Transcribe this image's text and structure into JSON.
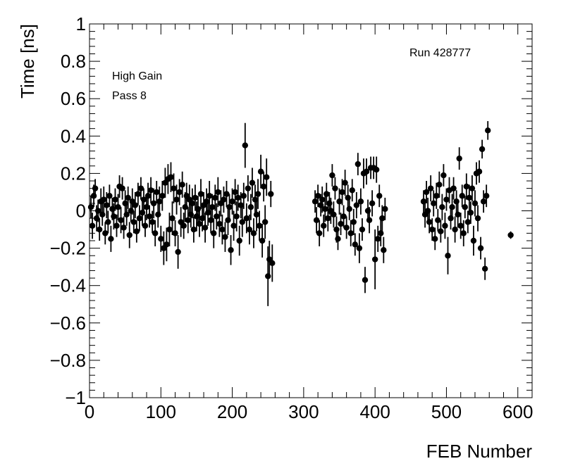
{
  "chart_data": {
    "type": "scatter",
    "xlabel": "FEB Number",
    "ylabel": "Time [ns]",
    "xlim": [
      0,
      620
    ],
    "ylim": [
      -1,
      1
    ],
    "x_ticks": [
      0,
      100,
      200,
      300,
      400,
      500,
      600
    ],
    "y_ticks": [
      -1,
      -0.8,
      -0.6,
      -0.4,
      -0.2,
      0,
      0.2,
      0.4,
      0.6,
      0.8,
      1
    ],
    "x_tick_labels": [
      "0",
      "100",
      "200",
      "300",
      "400",
      "500",
      "600"
    ],
    "y_tick_labels": [
      "−1",
      "−0.8",
      "−0.6",
      "−0.4",
      "−0.2",
      "0",
      "0.2",
      "0.4",
      "0.6",
      "0.8",
      "1"
    ],
    "grid": false,
    "annotations": {
      "gain": "High Gain",
      "pass": "Pass 8",
      "run": "Run 428777"
    },
    "points": [
      [
        2,
        0.02,
        0.06
      ],
      [
        4,
        -0.08,
        0.07
      ],
      [
        6,
        0.08,
        0.06
      ],
      [
        8,
        0.12,
        0.05
      ],
      [
        10,
        -0.04,
        0.07
      ],
      [
        12,
        0.0,
        0.06
      ],
      [
        14,
        -0.1,
        0.06
      ],
      [
        16,
        0.05,
        0.07
      ],
      [
        18,
        -0.02,
        0.06
      ],
      [
        20,
        0.06,
        0.07
      ],
      [
        22,
        -0.12,
        0.06
      ],
      [
        24,
        0.03,
        0.07
      ],
      [
        26,
        -0.06,
        0.06
      ],
      [
        28,
        0.08,
        0.06
      ],
      [
        30,
        -0.15,
        0.07
      ],
      [
        32,
        0.01,
        0.06
      ],
      [
        34,
        -0.03,
        0.07
      ],
      [
        36,
        0.06,
        0.06
      ],
      [
        38,
        -0.08,
        0.06
      ],
      [
        40,
        0.02,
        0.07
      ],
      [
        42,
        0.13,
        0.06
      ],
      [
        44,
        -0.05,
        0.07
      ],
      [
        46,
        0.12,
        0.06
      ],
      [
        48,
        -0.09,
        0.06
      ],
      [
        50,
        0.04,
        0.07
      ],
      [
        52,
        -0.02,
        0.06
      ],
      [
        54,
        0.07,
        0.06
      ],
      [
        56,
        -0.13,
        0.07
      ],
      [
        58,
        0.0,
        0.06
      ],
      [
        60,
        0.05,
        0.07
      ],
      [
        62,
        -0.06,
        0.06
      ],
      [
        64,
        0.03,
        0.07
      ],
      [
        66,
        -0.11,
        0.06
      ],
      [
        68,
        0.09,
        0.06
      ],
      [
        70,
        -0.04,
        0.07
      ],
      [
        72,
        0.12,
        0.06
      ],
      [
        74,
        -0.01,
        0.07
      ],
      [
        76,
        0.06,
        0.06
      ],
      [
        78,
        -0.08,
        0.06
      ],
      [
        80,
        0.02,
        0.07
      ],
      [
        82,
        0.08,
        0.07
      ],
      [
        84,
        -0.03,
        0.06
      ],
      [
        86,
        0.11,
        0.07
      ],
      [
        88,
        -0.06,
        0.06
      ],
      [
        90,
        0.04,
        0.08
      ],
      [
        92,
        -0.12,
        0.07
      ],
      [
        94,
        0.1,
        0.06
      ],
      [
        96,
        -0.02,
        0.07
      ],
      [
        98,
        0.05,
        0.08
      ],
      [
        100,
        -0.15,
        0.07
      ],
      [
        102,
        0.08,
        0.08
      ],
      [
        104,
        -0.2,
        0.09
      ],
      [
        106,
        0.15,
        0.08
      ],
      [
        108,
        -0.18,
        0.09
      ],
      [
        110,
        0.17,
        0.08
      ],
      [
        112,
        -0.1,
        0.09
      ],
      [
        114,
        0.18,
        0.08
      ],
      [
        116,
        -0.04,
        0.09
      ],
      [
        118,
        0.12,
        0.08
      ],
      [
        120,
        -0.12,
        0.07
      ],
      [
        122,
        0.06,
        0.08
      ],
      [
        124,
        -0.22,
        0.09
      ],
      [
        126,
        0.1,
        0.07
      ],
      [
        128,
        -0.06,
        0.08
      ],
      [
        130,
        0.14,
        0.07
      ],
      [
        132,
        -0.08,
        0.07
      ],
      [
        134,
        0.02,
        0.08
      ],
      [
        136,
        0.08,
        0.07
      ],
      [
        138,
        -0.05,
        0.07
      ],
      [
        140,
        0.06,
        0.08
      ],
      [
        142,
        -0.02,
        0.07
      ],
      [
        144,
        0.04,
        0.08
      ],
      [
        146,
        -0.1,
        0.07
      ],
      [
        148,
        0.07,
        0.07
      ],
      [
        150,
        -0.03,
        0.08
      ],
      [
        152,
        0.01,
        0.07
      ],
      [
        154,
        -0.07,
        0.07
      ],
      [
        156,
        0.09,
        0.08
      ],
      [
        158,
        -0.04,
        0.07
      ],
      [
        160,
        0.03,
        0.07
      ],
      [
        162,
        -0.09,
        0.08
      ],
      [
        164,
        0.05,
        0.07
      ],
      [
        166,
        -0.01,
        0.07
      ],
      [
        168,
        0.08,
        0.08
      ],
      [
        170,
        -0.05,
        0.07
      ],
      [
        172,
        0.02,
        0.07
      ],
      [
        174,
        -0.12,
        0.08
      ],
      [
        176,
        0.07,
        0.07
      ],
      [
        178,
        -0.03,
        0.07
      ],
      [
        180,
        0.1,
        0.08
      ],
      [
        182,
        -0.07,
        0.07
      ],
      [
        184,
        0.04,
        0.07
      ],
      [
        186,
        -0.1,
        0.08
      ],
      [
        188,
        0.06,
        0.07
      ],
      [
        190,
        -0.14,
        0.08
      ],
      [
        192,
        0.09,
        0.07
      ],
      [
        194,
        -0.05,
        0.08
      ],
      [
        196,
        0.02,
        0.07
      ],
      [
        198,
        -0.21,
        0.08
      ],
      [
        200,
        0.05,
        0.07
      ],
      [
        202,
        -0.08,
        0.08
      ],
      [
        204,
        0.1,
        0.07
      ],
      [
        206,
        -0.03,
        0.08
      ],
      [
        208,
        0.07,
        0.07
      ],
      [
        210,
        -0.16,
        0.08
      ],
      [
        212,
        0.03,
        0.07
      ],
      [
        214,
        -0.06,
        0.08
      ],
      [
        216,
        0.08,
        0.07
      ],
      [
        218,
        0.35,
        0.12
      ],
      [
        220,
        -0.04,
        0.08
      ],
      [
        222,
        0.12,
        0.07
      ],
      [
        224,
        -0.1,
        0.08
      ],
      [
        226,
        0.02,
        0.07
      ],
      [
        228,
        0.15,
        0.08
      ],
      [
        230,
        -0.12,
        0.08
      ],
      [
        232,
        0.06,
        0.08
      ],
      [
        234,
        -0.02,
        0.09
      ],
      [
        236,
        0.09,
        0.08
      ],
      [
        238,
        -0.08,
        0.08
      ],
      [
        240,
        0.21,
        0.09
      ],
      [
        242,
        -0.16,
        0.09
      ],
      [
        244,
        0.13,
        0.08
      ],
      [
        246,
        -0.06,
        0.09
      ],
      [
        248,
        0.18,
        0.1
      ],
      [
        250,
        -0.35,
        0.16
      ],
      [
        252,
        -0.26,
        0.1
      ],
      [
        254,
        0.09,
        0.07
      ],
      [
        256,
        -0.28,
        0.1
      ],
      [
        316,
        0.05,
        0.06
      ],
      [
        318,
        -0.05,
        0.07
      ],
      [
        320,
        0.08,
        0.06
      ],
      [
        322,
        -0.12,
        0.07
      ],
      [
        324,
        0.03,
        0.06
      ],
      [
        326,
        0.06,
        0.07
      ],
      [
        328,
        -0.08,
        0.06
      ],
      [
        330,
        0.01,
        0.07
      ],
      [
        332,
        0.09,
        0.06
      ],
      [
        334,
        -0.04,
        0.07
      ],
      [
        336,
        0.04,
        0.06
      ],
      [
        338,
        0.0,
        0.07
      ],
      [
        340,
        0.19,
        0.06
      ],
      [
        342,
        -0.02,
        0.07
      ],
      [
        344,
        0.12,
        0.06
      ],
      [
        346,
        -0.1,
        0.07
      ],
      [
        348,
        -0.15,
        0.06
      ],
      [
        350,
        0.05,
        0.07
      ],
      [
        352,
        -0.07,
        0.06
      ],
      [
        354,
        0.1,
        0.07
      ],
      [
        356,
        -0.03,
        0.06
      ],
      [
        358,
        0.15,
        0.07
      ],
      [
        360,
        -0.09,
        0.06
      ],
      [
        362,
        0.07,
        0.07
      ],
      [
        364,
        0.01,
        0.06
      ],
      [
        366,
        -0.12,
        0.07
      ],
      [
        368,
        0.11,
        0.06
      ],
      [
        370,
        -0.06,
        0.07
      ],
      [
        372,
        -0.18,
        0.06
      ],
      [
        374,
        0.03,
        0.07
      ],
      [
        376,
        0.25,
        0.06
      ],
      [
        378,
        -0.2,
        0.08
      ],
      [
        380,
        0.05,
        0.07
      ],
      [
        382,
        -0.1,
        0.06
      ],
      [
        384,
        0.2,
        0.08
      ],
      [
        386,
        -0.37,
        0.07
      ],
      [
        388,
        0.21,
        0.07
      ],
      [
        390,
        0.0,
        0.06
      ],
      [
        392,
        -0.05,
        0.07
      ],
      [
        394,
        0.23,
        0.06
      ],
      [
        396,
        0.04,
        0.07
      ],
      [
        398,
        0.23,
        0.06
      ],
      [
        400,
        -0.26,
        0.16
      ],
      [
        402,
        0.22,
        0.07
      ],
      [
        404,
        -0.15,
        0.07
      ],
      [
        406,
        0.08,
        0.06
      ],
      [
        408,
        -0.12,
        0.07
      ],
      [
        410,
        -0.04,
        0.07
      ],
      [
        412,
        -0.21,
        0.07
      ],
      [
        414,
        0.01,
        0.06
      ],
      [
        468,
        0.05,
        0.06
      ],
      [
        470,
        -0.02,
        0.07
      ],
      [
        472,
        0.1,
        0.06
      ],
      [
        474,
        0.0,
        0.07
      ],
      [
        476,
        -0.06,
        0.06
      ],
      [
        478,
        0.12,
        0.07
      ],
      [
        480,
        -0.1,
        0.06
      ],
      [
        482,
        0.04,
        0.07
      ],
      [
        484,
        -0.15,
        0.06
      ],
      [
        486,
        0.08,
        0.07
      ],
      [
        488,
        -0.05,
        0.06
      ],
      [
        490,
        0.14,
        0.07
      ],
      [
        492,
        -0.11,
        0.06
      ],
      [
        494,
        0.02,
        0.07
      ],
      [
        496,
        0.19,
        0.06
      ],
      [
        498,
        -0.08,
        0.07
      ],
      [
        500,
        0.06,
        0.06
      ],
      [
        502,
        -0.24,
        0.1
      ],
      [
        504,
        0.11,
        0.07
      ],
      [
        506,
        -0.04,
        0.06
      ],
      [
        508,
        0.02,
        0.07
      ],
      [
        510,
        0.12,
        0.06
      ],
      [
        512,
        -0.1,
        0.07
      ],
      [
        514,
        0.05,
        0.06
      ],
      [
        516,
        -0.02,
        0.07
      ],
      [
        518,
        0.28,
        0.06
      ],
      [
        520,
        -0.08,
        0.07
      ],
      [
        522,
        0.08,
        0.06
      ],
      [
        524,
        -0.12,
        0.07
      ],
      [
        526,
        0.02,
        0.06
      ],
      [
        528,
        0.13,
        0.07
      ],
      [
        530,
        -0.06,
        0.06
      ],
      [
        532,
        0.07,
        0.07
      ],
      [
        534,
        -0.01,
        0.06
      ],
      [
        536,
        0.12,
        0.07
      ],
      [
        538,
        -0.16,
        0.08
      ],
      [
        540,
        0.04,
        0.07
      ],
      [
        542,
        0.2,
        0.06
      ],
      [
        544,
        -0.04,
        0.07
      ],
      [
        546,
        0.21,
        0.06
      ],
      [
        548,
        -0.2,
        0.06
      ],
      [
        550,
        0.33,
        0.05
      ],
      [
        552,
        0.05,
        0.06
      ],
      [
        554,
        -0.31,
        0.06
      ],
      [
        556,
        0.08,
        0.06
      ],
      [
        558,
        0.43,
        0.05
      ],
      [
        590,
        -0.13,
        0.02
      ]
    ]
  }
}
